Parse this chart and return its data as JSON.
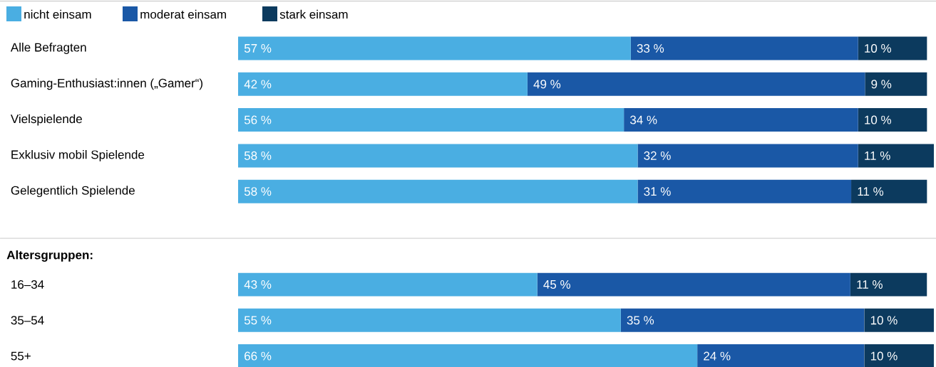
{
  "chart_data": [
    {
      "type": "bar",
      "orientation": "horizontal",
      "stacked": true,
      "legend": "top left",
      "tick_labels": "y",
      "categories": [
        "Alle Befragten",
        "Gaming-Enthusiast:innen („Gamer“)",
        "Vielspielende",
        "Exklusiv mobil Spielende",
        "Gelegentlich Spielende"
      ],
      "series": [
        {
          "name": "nicht einsam",
          "color": "#4aaee2",
          "values": [
            57,
            42,
            56,
            58,
            58
          ],
          "value_labels": [
            "57 %",
            "42 %",
            "56 %",
            "58 %",
            "58 %"
          ]
        },
        {
          "name": "moderat einsam",
          "color": "#1a58a6",
          "values": [
            33,
            49,
            34,
            32,
            31
          ],
          "value_labels": [
            "33 %",
            "49 %",
            "34 %",
            "32 %",
            "31 %"
          ]
        },
        {
          "name": "stark einsam",
          "color": "#0c3a5e",
          "values": [
            10,
            9,
            10,
            11,
            11
          ],
          "value_labels": [
            "10 %",
            "9 %",
            "10 %",
            "11 %",
            "11 %"
          ]
        }
      ]
    },
    {
      "type": "bar",
      "orientation": "horizontal",
      "stacked": true,
      "tick_labels": "y",
      "title": "Altersgruppen:",
      "categories": [
        "16–34",
        "35–54",
        "55+"
      ],
      "series": [
        {
          "color": "#4aaee2",
          "values": [
            43,
            55,
            66
          ],
          "value_labels": [
            "43 %",
            "55 %",
            "66 %"
          ]
        },
        {
          "color": "#1a58a6",
          "values": [
            45,
            35,
            24
          ],
          "value_labels": [
            "45 %",
            "35 %",
            "24 %"
          ]
        },
        {
          "color": "#0c3a5e",
          "values": [
            11,
            10,
            10
          ],
          "value_labels": [
            "11 %",
            "10 %",
            "10 %"
          ]
        }
      ]
    }
  ]
}
